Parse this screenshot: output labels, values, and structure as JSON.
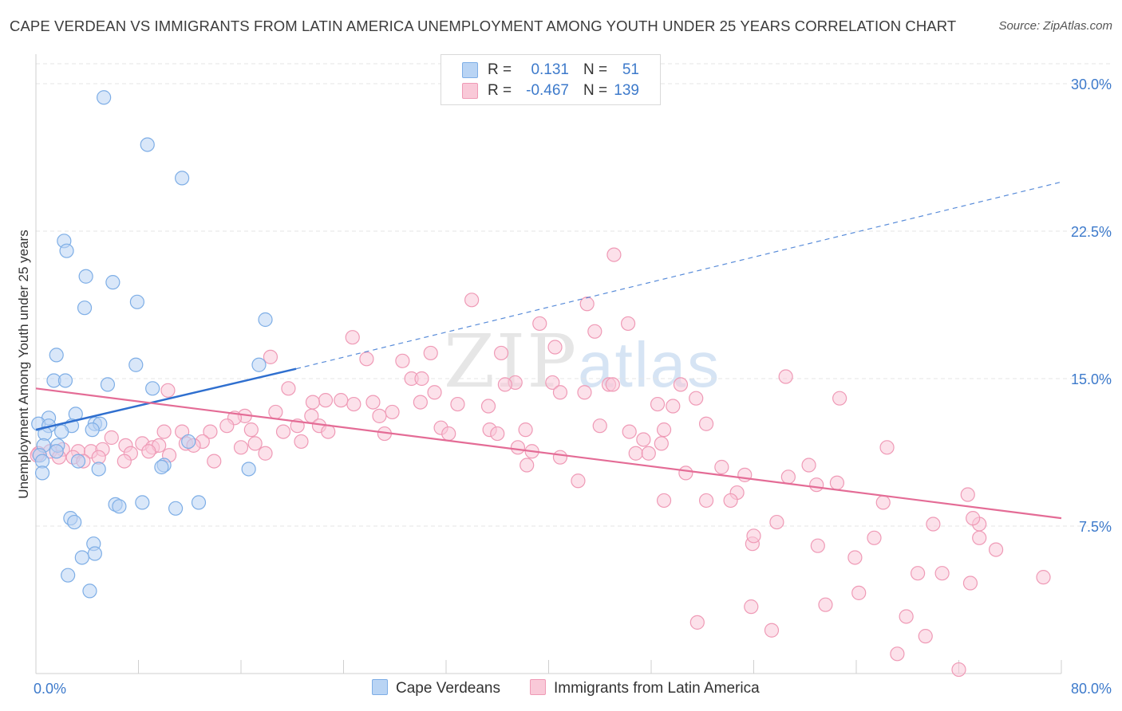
{
  "title": "CAPE VERDEAN VS IMMIGRANTS FROM LATIN AMERICA UNEMPLOYMENT AMONG YOUTH UNDER 25 YEARS CORRELATION CHART",
  "source": "Source: ZipAtlas.com",
  "watermark": {
    "zip": "ZIP",
    "atlas": "atlas"
  },
  "legend": {
    "rows": [
      {
        "r_label": "R =",
        "r_value": "0.131",
        "n_label": "N =",
        "n_value": "51"
      },
      {
        "r_label": "R =",
        "r_value": "-0.467",
        "n_label": "N =",
        "n_value": "139"
      }
    ]
  },
  "colors": {
    "blue_fill": "#b9d4f4",
    "blue_stroke": "#7eaee6",
    "blue_line": "#2f6fcf",
    "pink_fill": "#f9c9d8",
    "pink_stroke": "#ef9ab6",
    "pink_line": "#e46c96",
    "axis_text": "#3d7acb",
    "grid": "#e4e4e4"
  },
  "chart_data": {
    "type": "scatter",
    "title": "CAPE VERDEAN VS IMMIGRANTS FROM LATIN AMERICA UNEMPLOYMENT AMONG YOUTH UNDER 25 YEARS CORRELATION CHART",
    "xlabel": "",
    "ylabel": "Unemployment Among Youth under 25 years",
    "xlim": [
      0,
      80
    ],
    "ylim": [
      0,
      30
    ],
    "x_tick_labels": [
      "0.0%",
      "80.0%"
    ],
    "y_ticks": [
      7.5,
      15.0,
      22.5,
      30.0
    ],
    "y_tick_labels": [
      "7.5%",
      "15.0%",
      "22.5%",
      "30.0%"
    ],
    "grid": true,
    "legend_position": "top-center",
    "series": [
      {
        "name": "Cape Verdeans",
        "color": "#b9d4f4",
        "trend": {
          "x": [
            0,
            20.3
          ],
          "y": [
            12.4,
            15.5
          ],
          "dashed_extension_to": [
            80,
            25.0
          ]
        },
        "points": [
          [
            5.3,
            29.3
          ],
          [
            8.7,
            26.9
          ],
          [
            11.4,
            25.2
          ],
          [
            2.2,
            22.0
          ],
          [
            2.4,
            21.5
          ],
          [
            3.9,
            20.2
          ],
          [
            6.0,
            19.9
          ],
          [
            7.9,
            18.9
          ],
          [
            3.8,
            18.6
          ],
          [
            17.9,
            18.0
          ],
          [
            1.6,
            16.2
          ],
          [
            7.8,
            15.7
          ],
          [
            17.4,
            15.7
          ],
          [
            1.4,
            14.9
          ],
          [
            2.3,
            14.9
          ],
          [
            5.6,
            14.7
          ],
          [
            9.1,
            14.5
          ],
          [
            3.1,
            13.2
          ],
          [
            1.0,
            13.0
          ],
          [
            0.2,
            12.7
          ],
          [
            1.0,
            12.6
          ],
          [
            2.8,
            12.6
          ],
          [
            4.6,
            12.7
          ],
          [
            5.0,
            12.7
          ],
          [
            4.4,
            12.4
          ],
          [
            0.7,
            12.2
          ],
          [
            2.0,
            12.3
          ],
          [
            0.6,
            11.6
          ],
          [
            1.7,
            11.6
          ],
          [
            11.9,
            11.8
          ],
          [
            1.6,
            11.3
          ],
          [
            0.3,
            11.1
          ],
          [
            0.5,
            10.8
          ],
          [
            3.3,
            10.8
          ],
          [
            4.9,
            10.4
          ],
          [
            10.0,
            10.6
          ],
          [
            9.8,
            10.5
          ],
          [
            16.6,
            10.4
          ],
          [
            0.5,
            10.2
          ],
          [
            6.2,
            8.6
          ],
          [
            6.5,
            8.5
          ],
          [
            8.3,
            8.7
          ],
          [
            10.9,
            8.4
          ],
          [
            12.7,
            8.7
          ],
          [
            2.7,
            7.9
          ],
          [
            3.0,
            7.7
          ],
          [
            4.5,
            6.6
          ],
          [
            4.6,
            6.1
          ],
          [
            3.6,
            5.9
          ],
          [
            2.5,
            5.0
          ],
          [
            4.2,
            4.2
          ]
        ]
      },
      {
        "name": "Immigrants from Latin America",
        "color": "#f9c9d8",
        "trend": {
          "x": [
            0,
            80
          ],
          "y": [
            14.5,
            7.9
          ]
        },
        "points": [
          [
            45.1,
            21.3
          ],
          [
            34.0,
            19.0
          ],
          [
            43.0,
            18.8
          ],
          [
            39.3,
            17.8
          ],
          [
            46.2,
            17.8
          ],
          [
            43.6,
            17.4
          ],
          [
            24.7,
            17.1
          ],
          [
            40.5,
            16.6
          ],
          [
            36.3,
            16.3
          ],
          [
            30.8,
            16.3
          ],
          [
            18.3,
            16.1
          ],
          [
            25.8,
            16.0
          ],
          [
            28.6,
            15.9
          ],
          [
            58.5,
            15.1
          ],
          [
            29.3,
            15.0
          ],
          [
            30.1,
            15.0
          ],
          [
            40.3,
            14.8
          ],
          [
            37.4,
            14.8
          ],
          [
            36.6,
            14.7
          ],
          [
            44.7,
            14.7
          ],
          [
            45.0,
            14.7
          ],
          [
            50.3,
            14.7
          ],
          [
            19.7,
            14.5
          ],
          [
            10.3,
            14.4
          ],
          [
            31.1,
            14.3
          ],
          [
            40.9,
            14.3
          ],
          [
            42.8,
            14.3
          ],
          [
            35.3,
            13.6
          ],
          [
            26.3,
            13.8
          ],
          [
            24.8,
            13.7
          ],
          [
            32.9,
            13.7
          ],
          [
            22.6,
            13.9
          ],
          [
            21.6,
            13.8
          ],
          [
            23.8,
            13.9
          ],
          [
            30.0,
            13.8
          ],
          [
            48.5,
            13.7
          ],
          [
            49.7,
            13.6
          ],
          [
            51.5,
            14.0
          ],
          [
            62.7,
            14.0
          ],
          [
            27.8,
            13.3
          ],
          [
            18.7,
            13.3
          ],
          [
            26.8,
            13.1
          ],
          [
            21.5,
            13.1
          ],
          [
            16.3,
            13.1
          ],
          [
            15.5,
            13.0
          ],
          [
            14.9,
            12.6
          ],
          [
            20.4,
            12.6
          ],
          [
            22.1,
            12.6
          ],
          [
            31.6,
            12.5
          ],
          [
            35.4,
            12.4
          ],
          [
            38.2,
            12.4
          ],
          [
            44.0,
            12.6
          ],
          [
            49.0,
            12.4
          ],
          [
            52.3,
            12.7
          ],
          [
            10.0,
            12.3
          ],
          [
            11.4,
            12.3
          ],
          [
            13.6,
            12.3
          ],
          [
            16.8,
            12.4
          ],
          [
            19.3,
            12.3
          ],
          [
            22.8,
            12.3
          ],
          [
            27.2,
            12.2
          ],
          [
            32.2,
            12.2
          ],
          [
            36.0,
            12.2
          ],
          [
            46.3,
            12.3
          ],
          [
            47.4,
            11.9
          ],
          [
            20.7,
            11.8
          ],
          [
            13.0,
            11.8
          ],
          [
            11.7,
            11.7
          ],
          [
            8.3,
            11.7
          ],
          [
            7.0,
            11.6
          ],
          [
            9.1,
            11.5
          ],
          [
            9.6,
            11.6
          ],
          [
            17.1,
            11.7
          ],
          [
            16.0,
            11.5
          ],
          [
            37.6,
            11.5
          ],
          [
            48.8,
            11.7
          ],
          [
            66.4,
            11.5
          ],
          [
            2.1,
            11.4
          ],
          [
            1.1,
            11.3
          ],
          [
            0.2,
            11.2
          ],
          [
            3.3,
            11.3
          ],
          [
            4.3,
            11.3
          ],
          [
            5.2,
            11.4
          ],
          [
            7.4,
            11.2
          ],
          [
            8.8,
            11.3
          ],
          [
            10.4,
            11.1
          ],
          [
            12.3,
            11.6
          ],
          [
            17.9,
            11.2
          ],
          [
            38.7,
            11.3
          ],
          [
            46.8,
            11.2
          ],
          [
            47.8,
            11.2
          ],
          [
            1.8,
            11.0
          ],
          [
            2.9,
            11.0
          ],
          [
            4.9,
            11.0
          ],
          [
            40.9,
            11.0
          ],
          [
            3.7,
            10.8
          ],
          [
            6.9,
            10.8
          ],
          [
            13.9,
            10.8
          ],
          [
            38.3,
            10.6
          ],
          [
            60.3,
            10.6
          ],
          [
            53.5,
            10.5
          ],
          [
            50.7,
            10.2
          ],
          [
            58.7,
            10.0
          ],
          [
            55.3,
            10.1
          ],
          [
            42.3,
            9.8
          ],
          [
            60.9,
            9.6
          ],
          [
            62.5,
            9.7
          ],
          [
            72.7,
            9.1
          ],
          [
            54.7,
            9.2
          ],
          [
            49.0,
            8.8
          ],
          [
            52.3,
            8.8
          ],
          [
            66.1,
            8.7
          ],
          [
            54.2,
            8.8
          ],
          [
            57.8,
            7.7
          ],
          [
            73.6,
            7.6
          ],
          [
            70.0,
            7.6
          ],
          [
            73.1,
            7.9
          ],
          [
            65.4,
            6.9
          ],
          [
            61.0,
            6.5
          ],
          [
            55.9,
            6.6
          ],
          [
            73.6,
            6.9
          ],
          [
            56.0,
            7.0
          ],
          [
            74.9,
            6.3
          ],
          [
            63.9,
            5.9
          ],
          [
            70.7,
            5.1
          ],
          [
            72.9,
            4.6
          ],
          [
            78.6,
            4.9
          ],
          [
            68.8,
            5.1
          ],
          [
            64.2,
            4.1
          ],
          [
            61.6,
            3.5
          ],
          [
            55.8,
            3.4
          ],
          [
            51.6,
            2.6
          ],
          [
            57.4,
            2.2
          ],
          [
            67.9,
            2.9
          ],
          [
            69.4,
            1.9
          ],
          [
            67.2,
            1.0
          ],
          [
            72.0,
            0.2
          ],
          [
            0.1,
            11.1
          ],
          [
            5.9,
            12.0
          ]
        ]
      }
    ]
  }
}
